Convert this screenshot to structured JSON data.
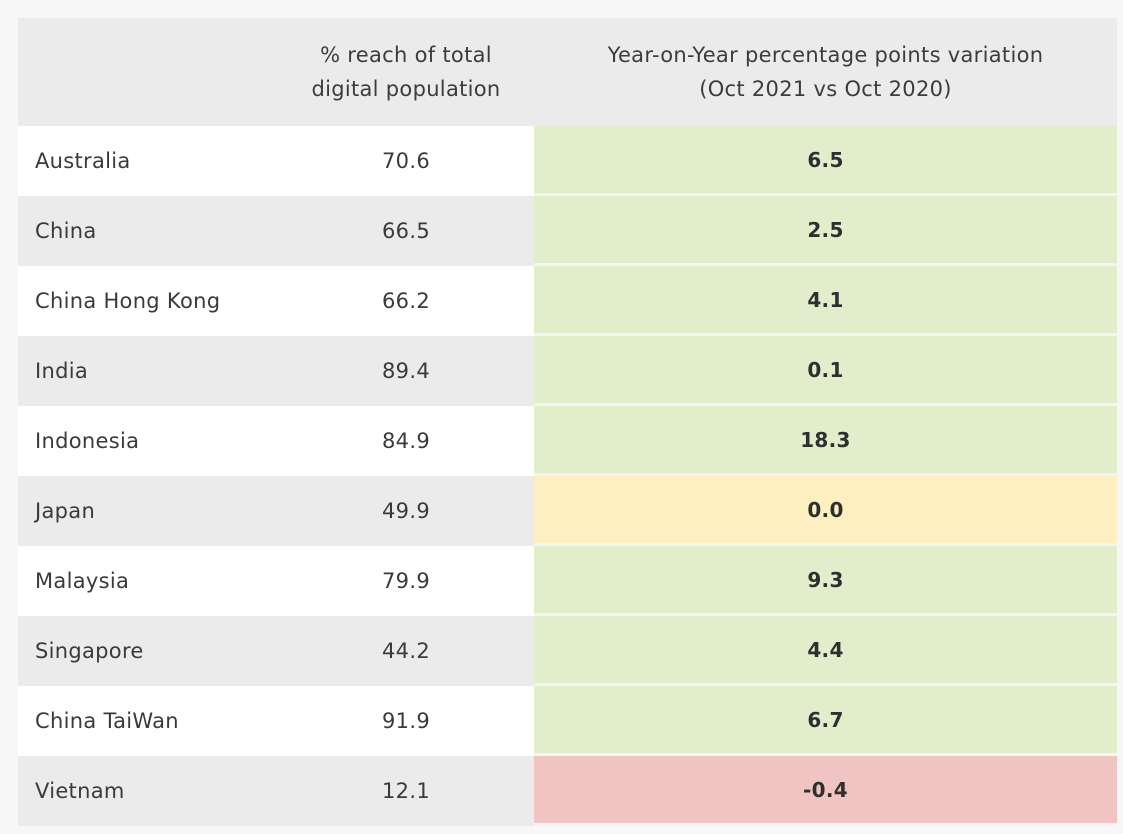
{
  "table": {
    "headers": {
      "country": "",
      "reach": [
        "% reach of total",
        "digital population"
      ],
      "yoy": [
        "Year-on-Year percentage points variation",
        "(Oct 2021 vs Oct 2020)"
      ]
    },
    "colors": {
      "positive": "#e2eecb",
      "neutral": "#fdefc0",
      "negative": "#f0c4c3"
    }
  },
  "chart_data": {
    "type": "table",
    "columns": [
      "",
      "% reach of total digital population",
      "Year-on-Year percentage points variation (Oct 2021 vs Oct 2020)"
    ],
    "rows": [
      {
        "country": "Australia",
        "reach": "70.6",
        "yoy": "6.5",
        "status": "positive"
      },
      {
        "country": "China",
        "reach": "66.5",
        "yoy": "2.5",
        "status": "positive"
      },
      {
        "country": "China Hong Kong",
        "reach": "66.2",
        "yoy": "4.1",
        "status": "positive"
      },
      {
        "country": "India",
        "reach": "89.4",
        "yoy": "0.1",
        "status": "positive"
      },
      {
        "country": "Indonesia",
        "reach": "84.9",
        "yoy": "18.3",
        "status": "positive"
      },
      {
        "country": "Japan",
        "reach": "49.9",
        "yoy": "0.0",
        "status": "neutral"
      },
      {
        "country": "Malaysia",
        "reach": "79.9",
        "yoy": "9.3",
        "status": "positive"
      },
      {
        "country": "Singapore",
        "reach": "44.2",
        "yoy": "4.4",
        "status": "positive"
      },
      {
        "country": "China TaiWan",
        "reach": "91.9",
        "yoy": "6.7",
        "status": "positive"
      },
      {
        "country": "Vietnam",
        "reach": "12.1",
        "yoy": "-0.4",
        "status": "negative"
      }
    ]
  }
}
